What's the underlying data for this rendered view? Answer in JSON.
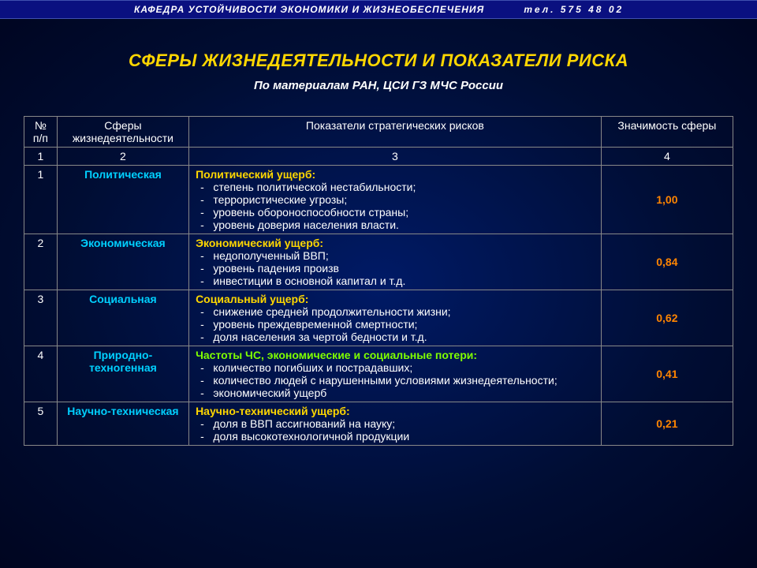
{
  "header": {
    "dept": "КАФЕДРА  УСТОЙЧИВОСТИ  ЭКОНОМИКИ  И  ЖИЗНЕОБЕСПЕЧЕНИЯ",
    "phone": "тел.  575  48  02"
  },
  "title": "СФЕРЫ ЖИЗНЕДЕЯТЕЛЬНОСТИ И ПОКАЗАТЕЛИ РИСКА",
  "subtitle": "По материалам РАН, ЦСИ ГЗ МЧС России",
  "table": {
    "columns": {
      "c1a": "№",
      "c1b": "п/п",
      "c2a": "Сферы",
      "c2b": "жизнедеятельности",
      "c3": "Показатели стратегических рисков",
      "c4": "Значимость сферы"
    },
    "numrow": {
      "n1": "1",
      "n2": "2",
      "n3": "3",
      "n4": "4"
    },
    "rows": [
      {
        "num": "1",
        "sphere": "Политическая",
        "header": "Политический ущерб:",
        "header_color": "#ffd700",
        "items": [
          "степень политической нестабильности;",
          "террористические угрозы;",
          "уровень обороноспособности страны;",
          "уровень доверия населения власти."
        ],
        "value": "1,00"
      },
      {
        "num": "2",
        "sphere": "Экономическая",
        "header": "Экономический ущерб:",
        "header_color": "#ffd700",
        "items": [
          "недополученный ВВП;",
          "уровень падения произв",
          "инвестиции в основной капитал и т.д."
        ],
        "value": "0,84"
      },
      {
        "num": "3",
        "sphere": "Социальная",
        "header": "Социальный ущерб:",
        "header_color": "#ffd700",
        "items": [
          "снижение средней продолжительности жизни;",
          "уровень преждевременной смертности;",
          "доля населения за чертой бедности и т.д."
        ],
        "value": "0,62"
      },
      {
        "num": "4",
        "sphere": "Природно-\nтехногенная",
        "header": "Частоты ЧС, экономические и социальные потери:",
        "header_color": "#7fff00",
        "items": [
          "количество погибших и пострадавших;",
          "количество людей с нарушенными условиями жизнедеятельности;",
          "экономический ущерб"
        ],
        "value": "0,41"
      },
      {
        "num": "5",
        "sphere": "Научно-техническая",
        "header": "Научно-технический ущерб:",
        "header_color": "#ffd700",
        "items": [
          "доля в ВВП ассигнований на науку;",
          "доля высокотехнологичной продукции"
        ],
        "value": "0,21"
      }
    ]
  },
  "colors": {
    "title": "#ffd700",
    "subtitle": "#ffffff",
    "sphere": "#00d0ff",
    "value": "#ff8500",
    "border": "#888888",
    "bg_center": "#001a66",
    "bg_edge": "#000520"
  }
}
